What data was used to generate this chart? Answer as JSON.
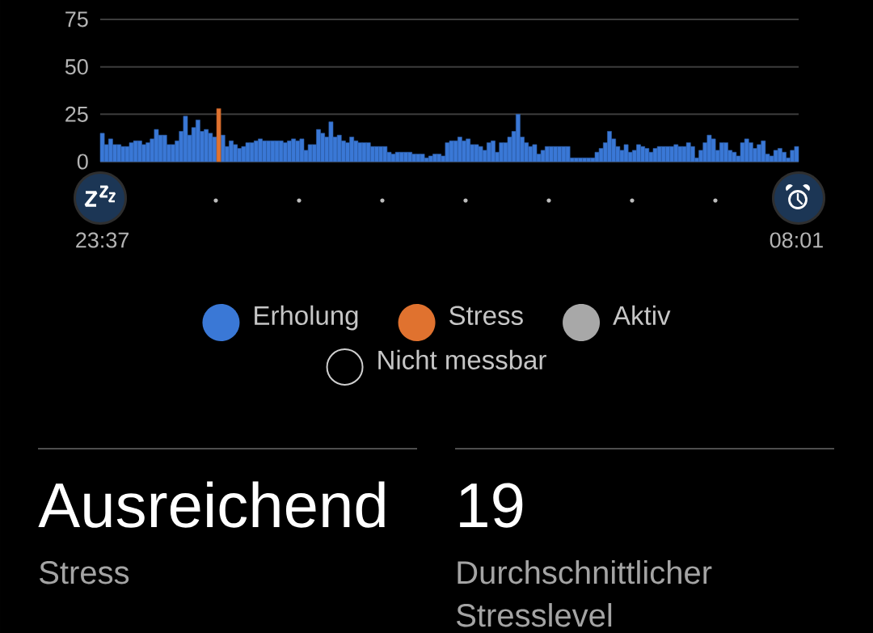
{
  "chart_data": [
    {
      "type": "bar",
      "categories": [
        "23:37",
        null,
        null,
        null,
        null,
        null,
        null,
        null,
        null,
        null,
        null,
        null,
        null,
        null,
        null,
        null,
        null,
        null,
        null,
        null,
        null,
        null,
        null,
        null,
        null,
        null,
        null,
        null,
        null,
        null,
        null,
        null,
        null,
        null,
        null,
        null,
        null,
        null,
        null,
        null,
        null,
        null,
        null,
        null,
        null,
        null,
        null,
        null,
        null,
        null,
        null,
        null,
        null,
        null,
        null,
        null,
        null,
        null,
        null,
        null,
        null,
        null,
        null,
        null,
        null,
        null,
        null,
        null,
        null,
        null,
        null,
        null,
        null,
        null,
        null,
        null,
        null,
        null,
        null,
        null,
        null,
        null,
        null,
        null,
        null,
        null,
        null,
        null,
        null,
        null,
        null,
        null,
        null,
        null,
        null,
        null,
        null,
        null,
        null,
        null,
        null,
        null,
        null,
        null,
        null,
        null,
        null,
        null,
        null,
        null,
        null,
        null,
        null,
        null,
        null,
        null,
        null,
        null,
        null,
        null,
        null,
        null,
        null,
        null,
        null,
        null,
        null,
        null,
        null,
        null,
        null,
        null,
        null,
        null,
        null,
        null,
        null,
        null,
        null,
        null,
        null,
        null,
        null,
        null,
        null,
        null,
        null,
        null,
        null,
        null,
        null,
        null,
        null,
        null,
        null,
        null,
        null,
        null,
        null,
        null,
        null,
        null,
        null,
        null,
        null,
        null,
        null,
        "08:01"
      ],
      "ylim": [
        0,
        75
      ],
      "yticks": [
        0,
        25,
        50,
        75
      ],
      "grid": "y",
      "legend": "bottom",
      "series": [
        {
          "name": "Erholung",
          "color": "#3a78d6",
          "values": [
            15,
            9,
            12,
            9,
            9,
            8,
            8,
            10,
            11,
            11,
            9,
            10,
            12,
            17,
            14,
            14,
            9,
            9,
            11,
            16,
            24,
            14,
            18,
            22,
            16,
            17,
            15,
            13,
            null,
            14,
            8,
            11,
            9,
            7,
            8,
            10,
            10,
            11,
            12,
            11,
            11,
            11,
            11,
            11,
            10,
            11,
            12,
            11,
            12,
            6,
            9,
            9,
            17,
            15,
            13,
            21,
            13,
            14,
            11,
            10,
            13,
            11,
            10,
            10,
            10,
            8,
            8,
            8,
            8,
            5,
            4,
            5,
            5,
            5,
            5,
            4,
            4,
            4,
            2,
            3,
            4,
            4,
            3,
            10,
            11,
            11,
            13,
            11,
            12,
            9,
            9,
            8,
            6,
            10,
            11,
            5,
            10,
            10,
            13,
            16,
            25,
            13,
            10,
            8,
            9,
            4,
            6,
            8,
            8,
            8,
            8,
            8,
            8,
            2,
            2,
            2,
            2,
            2,
            2,
            5,
            7,
            10,
            16,
            12,
            8,
            6,
            9,
            5,
            6,
            9,
            8,
            7,
            5,
            7,
            8,
            8,
            8,
            8,
            9,
            8,
            8,
            10,
            8,
            2,
            6,
            10,
            14,
            12,
            6,
            10,
            10,
            6,
            5,
            3,
            10,
            12,
            10,
            7,
            9,
            11,
            4,
            3,
            6,
            7,
            5,
            2,
            6,
            8
          ]
        },
        {
          "name": "Stress",
          "color": "#e0722f",
          "values": [
            null,
            null,
            null,
            null,
            null,
            null,
            null,
            null,
            null,
            null,
            null,
            null,
            null,
            null,
            null,
            null,
            null,
            null,
            null,
            null,
            null,
            null,
            null,
            null,
            null,
            null,
            null,
            null,
            28,
            null,
            null,
            null,
            null,
            null,
            null,
            null,
            null,
            null,
            null,
            null,
            null,
            null,
            null,
            null,
            null,
            null,
            null,
            null,
            null,
            null,
            null,
            null,
            null,
            null,
            null,
            null,
            null,
            null,
            null,
            null,
            null,
            null,
            null,
            null,
            null,
            null,
            null,
            null,
            null,
            null,
            null,
            null,
            null,
            null,
            null,
            null,
            null,
            null,
            null,
            null,
            null,
            null,
            null,
            null,
            null,
            null,
            null,
            null,
            null,
            null,
            null,
            null,
            null,
            null,
            null,
            null,
            null,
            null,
            null,
            null,
            null,
            null,
            null,
            null,
            null,
            null,
            null,
            null,
            null,
            null,
            null,
            null,
            null,
            null,
            null,
            null,
            null,
            null,
            null,
            null,
            null,
            null,
            null,
            null,
            null,
            null,
            null,
            null,
            null,
            null,
            null,
            null,
            null,
            null,
            null,
            null,
            null,
            null,
            null,
            null,
            null,
            null,
            null,
            null,
            null,
            null,
            null,
            null,
            null,
            null,
            null,
            null,
            null,
            null,
            null,
            null,
            null,
            null,
            null,
            null,
            null,
            null,
            null,
            null,
            null,
            null,
            null,
            null
          ]
        },
        {
          "name": "Aktiv",
          "color": "#a8a8a8",
          "values": [
            null,
            null,
            null,
            null,
            null,
            null,
            null,
            null,
            null,
            null,
            null,
            null,
            null,
            null,
            null,
            null,
            null,
            null,
            null,
            null,
            null,
            null,
            null,
            null,
            null,
            null,
            null,
            null,
            null,
            null,
            null,
            null,
            null,
            null,
            null,
            null,
            null,
            null,
            null,
            null,
            null,
            null,
            null,
            null,
            null,
            null,
            null,
            null,
            null,
            null,
            null,
            null,
            null,
            null,
            null,
            null,
            null,
            null,
            null,
            null,
            null,
            null,
            null,
            null,
            null,
            null,
            null,
            null,
            null,
            null,
            null,
            null,
            null,
            null,
            null,
            null,
            null,
            null,
            null,
            null,
            null,
            null,
            null,
            null,
            null,
            null,
            null,
            null,
            null,
            null,
            null,
            null,
            null,
            null,
            null,
            null,
            null,
            null,
            null,
            null,
            null,
            null,
            null,
            null,
            null,
            null,
            null,
            null,
            null,
            null,
            null,
            null,
            null,
            null,
            null,
            null,
            null,
            null,
            null,
            null,
            null,
            null,
            null,
            null,
            null,
            null,
            null,
            null,
            null,
            null,
            null,
            null,
            null,
            null,
            null,
            null,
            null,
            null,
            null,
            null,
            null,
            null,
            null,
            null,
            null,
            null,
            null,
            null,
            null,
            null,
            null,
            null,
            null,
            null,
            null,
            null,
            null,
            null,
            null,
            null,
            null,
            null,
            null,
            null,
            null,
            null,
            null,
            null
          ]
        },
        {
          "name": "Nicht messbar",
          "color": "#000000",
          "values": [
            null,
            null,
            null,
            null,
            null,
            null,
            null,
            null,
            null,
            null,
            null,
            null,
            null,
            null,
            null,
            null,
            null,
            null,
            null,
            null,
            null,
            null,
            null,
            null,
            null,
            null,
            null,
            null,
            null,
            null,
            null,
            null,
            null,
            null,
            null,
            null,
            null,
            null,
            null,
            null,
            null,
            null,
            null,
            null,
            null,
            null,
            null,
            null,
            null,
            null,
            null,
            null,
            null,
            null,
            null,
            null,
            null,
            null,
            null,
            null,
            null,
            null,
            null,
            null,
            null,
            null,
            null,
            null,
            null,
            null,
            null,
            null,
            null,
            null,
            null,
            null,
            null,
            null,
            null,
            null,
            null,
            null,
            null,
            null,
            null,
            null,
            null,
            null,
            null,
            null,
            null,
            null,
            null,
            null,
            null,
            null,
            null,
            null,
            null,
            null,
            null,
            null,
            null,
            null,
            null,
            null,
            null,
            null,
            null,
            null,
            null,
            null,
            null,
            null,
            null,
            null,
            null,
            null,
            null,
            null,
            null,
            null,
            null,
            null,
            null,
            null,
            null,
            null,
            null,
            null,
            null,
            null,
            null,
            null,
            null,
            null,
            null,
            null,
            null,
            null,
            null,
            null,
            null,
            null,
            null,
            null,
            null,
            null,
            null,
            null,
            null,
            null,
            null,
            null,
            null,
            null,
            null,
            null,
            null,
            null,
            null,
            null,
            null,
            null,
            null,
            null,
            null,
            null
          ]
        }
      ]
    },
    {
      "type": "other",
      "title": "Ausreichend",
      "subtitle": "Stress"
    },
    {
      "type": "other",
      "title": "19",
      "subtitle": "Durchschnittlicher Stresslevel"
    }
  ]
}
